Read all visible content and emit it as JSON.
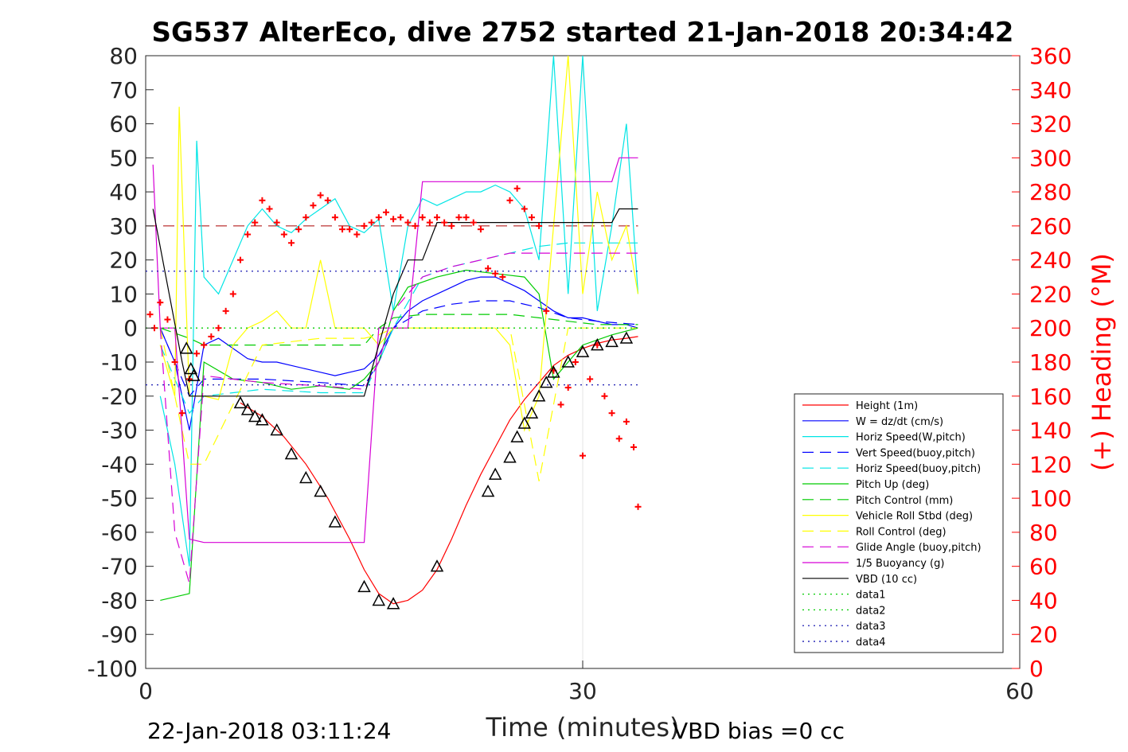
{
  "chart_data": {
    "type": "line",
    "title": "SG537 AlterEco, dive 2752 started 21-Jan-2018 20:34:42",
    "xlabel": "Time (minutes)",
    "ylabel_right": "(+) Heading (°M)",
    "footer_left": "22-Jan-2018 03:11:24",
    "footer_right": "VBD bias =0 cc",
    "xlim": [
      0,
      60
    ],
    "ylim": [
      -100,
      80
    ],
    "ylim_right": [
      0,
      360
    ],
    "xticks": [
      "0",
      "30",
      "60"
    ],
    "yticks_left": [
      "80",
      "70",
      "60",
      "50",
      "40",
      "30",
      "20",
      "10",
      "0",
      "-10",
      "-20",
      "-30",
      "-40",
      "-50",
      "-60",
      "-70",
      "-80",
      "-90",
      "-100"
    ],
    "yticks_right": [
      "360",
      "340",
      "320",
      "300",
      "280",
      "260",
      "240",
      "220",
      "200",
      "180",
      "160",
      "140",
      "120",
      "100",
      "80",
      "60",
      "40",
      "20",
      "0"
    ],
    "legend_position": "lower-right",
    "series": [
      {
        "name": "Height (1m)",
        "color": "#ff0000",
        "style": "solid",
        "x": [
          6.5,
          8,
          9.5,
          11,
          12.5,
          14,
          15,
          16,
          17,
          18,
          19,
          20,
          21,
          22,
          23,
          24,
          25,
          26,
          27,
          28,
          29,
          30,
          31,
          32,
          33,
          33.8
        ],
        "y": [
          -22,
          -26,
          -32,
          -40,
          -50,
          -62,
          -71,
          -78,
          -81,
          -80,
          -77,
          -71,
          -62,
          -52,
          -43,
          -35,
          -27,
          -21,
          -16,
          -11,
          -8,
          -6,
          -4.5,
          -3.5,
          -3,
          -2.5
        ]
      },
      {
        "name": "W = dz/dt (cm/s)",
        "color": "#0000ff",
        "style": "solid",
        "x": [
          1,
          2,
          3,
          4,
          5,
          6,
          7,
          8,
          9,
          10,
          11,
          12,
          13,
          14,
          15,
          16,
          17,
          18,
          19,
          20,
          21,
          22,
          23,
          24,
          25,
          26,
          27,
          28,
          29,
          30,
          31,
          32,
          33,
          33.8
        ],
        "y": [
          0,
          -10,
          -30,
          -5,
          -3,
          -6,
          -9,
          -10,
          -10,
          -11,
          -12,
          -13,
          -14,
          -13,
          -12,
          -8,
          0,
          5,
          8,
          10,
          12,
          14,
          15,
          15,
          13,
          11,
          8,
          5,
          3,
          3,
          2,
          1,
          1,
          0
        ]
      },
      {
        "name": "Horiz Speed(W,pitch)",
        "color": "#00e5e5",
        "style": "solid",
        "x": [
          1,
          2,
          3,
          3.5,
          4,
          5,
          6,
          7,
          8,
          9,
          10,
          11,
          12,
          13,
          14,
          15,
          16,
          17,
          18,
          19,
          20,
          21,
          22,
          23,
          24,
          25,
          26,
          27,
          28,
          29,
          30,
          31,
          32,
          33,
          33.8
        ],
        "y": [
          -20,
          -40,
          -70,
          55,
          15,
          10,
          20,
          30,
          35,
          30,
          28,
          32,
          35,
          38,
          30,
          28,
          32,
          5,
          30,
          38,
          36,
          38,
          40,
          40,
          42,
          40,
          35,
          20,
          80,
          10,
          80,
          5,
          30,
          60,
          10
        ]
      },
      {
        "name": "Vert Speed(buoy,pitch)",
        "color": "#0000ff",
        "style": "dashed",
        "x": [
          1,
          3,
          4,
          8,
          12,
          15,
          16,
          17,
          19,
          21,
          23,
          25,
          27,
          29,
          31,
          33.8
        ],
        "y": [
          0,
          -20,
          -15,
          -15,
          -16,
          -17,
          -10,
          0,
          5,
          7,
          8,
          8,
          6,
          3,
          2,
          1
        ]
      },
      {
        "name": "Horiz Speed(buoy,pitch)",
        "color": "#00e5e5",
        "style": "dashed",
        "x": [
          1,
          3,
          4,
          8,
          12,
          15,
          16,
          17,
          19,
          21,
          23,
          25,
          27,
          29,
          31,
          33.8
        ],
        "y": [
          -5,
          -25,
          -20,
          -18,
          -19,
          -19,
          -10,
          0,
          15,
          18,
          20,
          22,
          24,
          25,
          25,
          25
        ]
      },
      {
        "name": "Pitch Up (deg)",
        "color": "#00cc00",
        "style": "solid",
        "x": [
          1,
          2,
          3,
          4,
          6,
          8,
          10,
          12,
          14,
          15,
          16,
          17,
          18,
          20,
          22,
          24,
          26,
          27,
          28,
          30,
          32,
          33.8
        ],
        "y": [
          -80,
          -79,
          -78,
          -10,
          -15,
          -16,
          -18,
          -17,
          -18,
          -15,
          -10,
          5,
          12,
          15,
          17,
          16,
          15,
          10,
          -15,
          -5,
          -2,
          0
        ]
      },
      {
        "name": "Pitch Control (mm)",
        "color": "#00cc00",
        "style": "dashed",
        "x": [
          1,
          3,
          4,
          8,
          12,
          15,
          16,
          17,
          19,
          21,
          23,
          25,
          27,
          29,
          31,
          33.8
        ],
        "y": [
          0,
          -3,
          -5,
          -5,
          -5,
          -5,
          0,
          3,
          4,
          4,
          4,
          4,
          3,
          2,
          1,
          1
        ]
      },
      {
        "name": "Vehicle Roll Stbd (deg)",
        "color": "#ffff00",
        "style": "solid",
        "x": [
          1,
          2,
          2.3,
          3,
          4,
          5,
          6,
          7,
          8,
          9,
          10,
          11,
          12,
          13,
          14,
          15,
          16,
          17,
          18,
          20,
          22,
          24,
          25,
          26,
          27,
          28,
          29,
          30,
          31,
          32,
          33,
          33.8
        ],
        "y": [
          -5,
          -20,
          65,
          -20,
          -20,
          -21,
          -5,
          0,
          2,
          5,
          0,
          0,
          20,
          0,
          0,
          0,
          -5,
          0,
          0,
          0,
          0,
          0,
          -5,
          -30,
          -20,
          30,
          80,
          10,
          40,
          20,
          30,
          10
        ]
      },
      {
        "name": "Roll Control (deg)",
        "color": "#ffff00",
        "style": "dashed",
        "x": [
          1,
          3,
          4,
          8,
          12,
          15,
          16,
          17,
          19,
          21,
          23,
          25,
          27,
          29,
          31,
          33.8
        ],
        "y": [
          0,
          -40,
          -40,
          -5,
          -3,
          -3,
          -2,
          0,
          0,
          0,
          0,
          0,
          -45,
          0,
          0,
          0
        ]
      },
      {
        "name": "Glide Angle (buoy,pitch)",
        "color": "#d600d6",
        "style": "dashed",
        "x": [
          1,
          2,
          3,
          4,
          8,
          12,
          15,
          16,
          17,
          19,
          21,
          23,
          25,
          27,
          29,
          31,
          33.8
        ],
        "y": [
          0,
          -60,
          -75,
          -14,
          -16,
          -17,
          -18,
          -10,
          5,
          15,
          18,
          20,
          22,
          22,
          22,
          22,
          22
        ]
      },
      {
        "name": "1/5 Buoyancy (g)",
        "color": "#d600d6",
        "style": "solid",
        "x": [
          0.5,
          1,
          2,
          3,
          4,
          8,
          12,
          15,
          16,
          17,
          18,
          19,
          20,
          25,
          30,
          32,
          32.5,
          33.8
        ],
        "y": [
          48,
          0,
          0,
          -62,
          -63,
          -63,
          -63,
          -63,
          0,
          0,
          0,
          43,
          43,
          43,
          43,
          43,
          50,
          50
        ]
      },
      {
        "name": "VBD (10 cc)",
        "color": "#000000",
        "style": "solid",
        "x": [
          0.5,
          2.5,
          3,
          5,
          10,
          15,
          16,
          17,
          18,
          19,
          20,
          25,
          30,
          32,
          32.5,
          33.8
        ],
        "y": [
          35,
          -10,
          -20,
          -20,
          -20,
          -20,
          -5,
          10,
          20,
          20,
          31,
          31,
          31,
          31,
          35,
          35
        ]
      },
      {
        "name": "data1",
        "color": "#00cc00",
        "style": "dotted",
        "x": [
          0,
          33.8
        ],
        "y": [
          0,
          0
        ]
      },
      {
        "name": "data2",
        "color": "#00cc00",
        "style": "dotted",
        "x": [
          0,
          33.8
        ],
        "y": [
          0,
          0
        ]
      },
      {
        "name": "data3",
        "color": "#0000aa",
        "style": "dotted",
        "x": [
          0,
          33.8
        ],
        "y": [
          16.7,
          16.7
        ]
      },
      {
        "name": "data4",
        "color": "#0000aa",
        "style": "dotted",
        "x": [
          0,
          33.8
        ],
        "y": [
          -16.7,
          -16.7
        ]
      }
    ],
    "reference_lines": [
      {
        "color": "#aa0000",
        "style": "dashed",
        "y": 30,
        "x": [
          0,
          33.8
        ]
      }
    ],
    "heading_points": {
      "color": "#ff0000",
      "marker": "+",
      "x": [
        0.3,
        0.6,
        1,
        1.5,
        2,
        2.5,
        3,
        3.5,
        4,
        4.5,
        5,
        5.5,
        6,
        6.5,
        7,
        7.5,
        8,
        8.5,
        9,
        9.5,
        10,
        10.5,
        11,
        11.5,
        12,
        12.5,
        13,
        13.5,
        14,
        14.5,
        15,
        15.5,
        16,
        16.5,
        17,
        17.5,
        18,
        18.5,
        19,
        19.5,
        20,
        20.5,
        21,
        21.5,
        22,
        22.5,
        23,
        23.5,
        24,
        24.5,
        25,
        25.5,
        26,
        26.5,
        27,
        27.5,
        28,
        28.5,
        29,
        29.5,
        30,
        30.5,
        31,
        31.5,
        32,
        32.5,
        33,
        33.5,
        33.8
      ],
      "y": [
        208,
        200,
        215,
        205,
        180,
        150,
        170,
        185,
        190,
        195,
        200,
        210,
        220,
        240,
        255,
        262,
        275,
        270,
        262,
        255,
        250,
        258,
        265,
        272,
        278,
        275,
        265,
        258,
        258,
        255,
        260,
        262,
        265,
        268,
        264,
        265,
        262,
        260,
        265,
        262,
        265,
        262,
        260,
        265,
        265,
        262,
        258,
        235,
        232,
        230,
        275,
        282,
        270,
        265,
        260,
        210,
        175,
        155,
        165,
        180,
        125,
        170,
        190,
        160,
        150,
        135,
        145,
        130,
        95
      ]
    },
    "markers_triangle": {
      "color": "#000000",
      "marker": "triangle",
      "x": [
        2.8,
        3.1,
        3.3,
        6.5,
        7.0,
        7.5,
        8,
        9,
        10,
        11,
        12,
        13,
        15,
        16,
        17,
        20,
        23.5,
        24,
        25,
        25.5,
        26,
        26.5,
        27,
        27.5,
        28,
        29,
        30,
        31,
        32,
        33
      ],
      "y": [
        -6,
        -12,
        -14,
        -22,
        -24,
        -26,
        -27,
        -30,
        -37,
        -44,
        -48,
        -57,
        -76,
        -80,
        -81,
        -70,
        -48,
        -43,
        -38,
        -32,
        -28,
        -25,
        -20,
        -16,
        -13,
        -10,
        -7,
        -5,
        -4,
        -3
      ]
    }
  }
}
